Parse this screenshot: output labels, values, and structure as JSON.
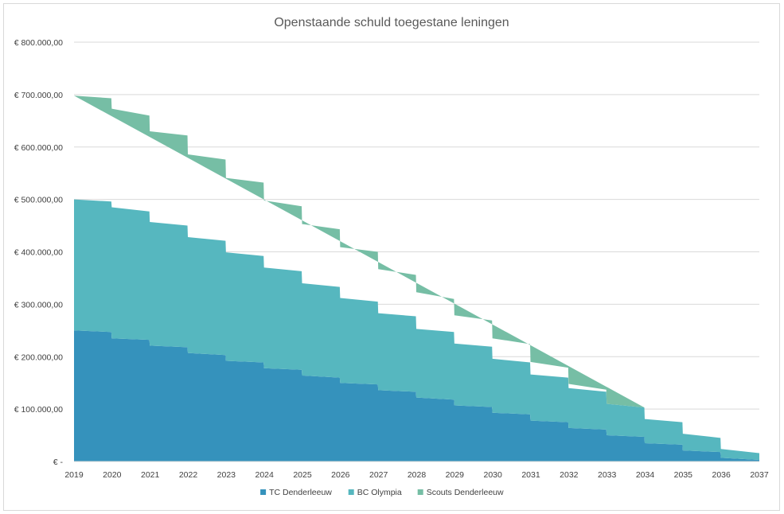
{
  "chart_data": {
    "type": "area",
    "stacked": true,
    "title": "Openstaande schuld toegestane leningen",
    "xlabel": "",
    "ylabel": "",
    "ylim": [
      0,
      800000
    ],
    "grid": true,
    "legend_position": "bottom",
    "y_ticks": [
      {
        "value": 0,
        "label": "€ -"
      },
      {
        "value": 100000,
        "label": "€ 100.000,00"
      },
      {
        "value": 200000,
        "label": "€ 200.000,00"
      },
      {
        "value": 300000,
        "label": "€ 300.000,00"
      },
      {
        "value": 400000,
        "label": "€ 400.000,00"
      },
      {
        "value": 500000,
        "label": "€ 500.000,00"
      },
      {
        "value": 600000,
        "label": "€ 600.000,00"
      },
      {
        "value": 700000,
        "label": "€ 700.000,00"
      },
      {
        "value": 800000,
        "label": "€ 800.000,00"
      }
    ],
    "x_ticks": [
      "2019",
      "2020",
      "2021",
      "2022",
      "2023",
      "2024",
      "2025",
      "2026",
      "2027",
      "2028",
      "2029",
      "2030",
      "2031",
      "2032",
      "2033",
      "2034",
      "2035",
      "2036",
      "2037"
    ],
    "series": [
      {
        "name": "TC Denderleeuw",
        "color": "#3592bc",
        "points": [
          [
            2019.0,
            250000
          ],
          [
            2019.98,
            247000
          ],
          [
            2019.99,
            235000
          ],
          [
            2020.98,
            232000
          ],
          [
            2020.99,
            221000
          ],
          [
            2021.98,
            218000
          ],
          [
            2021.99,
            207000
          ],
          [
            2022.98,
            203000
          ],
          [
            2022.99,
            192000
          ],
          [
            2023.98,
            189000
          ],
          [
            2023.99,
            178000
          ],
          [
            2024.98,
            175000
          ],
          [
            2024.99,
            164000
          ],
          [
            2025.98,
            160000
          ],
          [
            2025.99,
            150000
          ],
          [
            2026.98,
            147000
          ],
          [
            2026.99,
            136000
          ],
          [
            2027.98,
            133000
          ],
          [
            2027.99,
            122000
          ],
          [
            2028.98,
            118000
          ],
          [
            2028.99,
            107000
          ],
          [
            2029.98,
            104000
          ],
          [
            2029.99,
            93000
          ],
          [
            2030.98,
            90000
          ],
          [
            2030.99,
            78000
          ],
          [
            2031.98,
            75000
          ],
          [
            2031.99,
            64000
          ],
          [
            2032.98,
            61000
          ],
          [
            2032.99,
            50000
          ],
          [
            2033.98,
            47000
          ],
          [
            2033.99,
            35000
          ],
          [
            2034.98,
            32000
          ],
          [
            2034.99,
            21000
          ],
          [
            2035.98,
            18000
          ],
          [
            2035.99,
            7000
          ],
          [
            2037.0,
            3000
          ]
        ]
      },
      {
        "name": "BC Olympia",
        "color": "#56b7bf",
        "points": [
          [
            2019.0,
            250000
          ],
          [
            2019.98,
            249000
          ],
          [
            2019.99,
            250000
          ],
          [
            2020.98,
            245000
          ],
          [
            2020.99,
            236000
          ],
          [
            2021.98,
            232000
          ],
          [
            2021.99,
            221000
          ],
          [
            2022.98,
            218000
          ],
          [
            2022.99,
            207000
          ],
          [
            2023.98,
            203000
          ],
          [
            2023.99,
            192000
          ],
          [
            2024.98,
            188000
          ],
          [
            2024.99,
            176000
          ],
          [
            2025.98,
            173000
          ],
          [
            2025.99,
            162000
          ],
          [
            2026.98,
            158000
          ],
          [
            2026.99,
            147000
          ],
          [
            2027.98,
            144000
          ],
          [
            2027.99,
            131000
          ],
          [
            2028.98,
            129000
          ],
          [
            2028.99,
            118000
          ],
          [
            2029.98,
            115000
          ],
          [
            2029.99,
            103000
          ],
          [
            2030.98,
            99000
          ],
          [
            2030.99,
            88000
          ],
          [
            2031.98,
            85000
          ],
          [
            2031.99,
            76000
          ],
          [
            2032.98,
            72000
          ],
          [
            2032.99,
            60000
          ],
          [
            2033.98,
            56000
          ],
          [
            2033.99,
            46000
          ],
          [
            2034.98,
            43000
          ],
          [
            2034.99,
            32000
          ],
          [
            2035.98,
            27000
          ],
          [
            2035.99,
            17000
          ],
          [
            2037.0,
            13000
          ]
        ]
      },
      {
        "name": "Scouts Denderleeuw",
        "color": "#76bea5",
        "points": [
          [
            2019.0,
            198000
          ],
          [
            2019.98,
            197000
          ],
          [
            2019.99,
            188000
          ],
          [
            2020.98,
            183000
          ],
          [
            2020.99,
            173000
          ],
          [
            2021.98,
            172000
          ],
          [
            2021.99,
            158000
          ],
          [
            2022.98,
            155000
          ],
          [
            2022.99,
            142000
          ],
          [
            2023.98,
            140000
          ],
          [
            2023.99,
            128000
          ],
          [
            2024.98,
            124000
          ],
          [
            2024.99,
            113000
          ],
          [
            2025.98,
            110000
          ],
          [
            2025.99,
            97000
          ],
          [
            2026.98,
            95000
          ],
          [
            2026.99,
            84000
          ],
          [
            2027.98,
            79000
          ],
          [
            2027.99,
            70000
          ],
          [
            2028.98,
            63000
          ],
          [
            2028.99,
            54000
          ],
          [
            2029.98,
            50000
          ],
          [
            2029.99,
            39000
          ],
          [
            2030.98,
            35000
          ],
          [
            2030.99,
            24000
          ],
          [
            2031.98,
            19000
          ],
          [
            2031.99,
            8000
          ],
          [
            2032.98,
            4000
          ],
          [
            2032.99,
            0
          ],
          [
            2037.0,
            0
          ]
        ]
      }
    ]
  }
}
